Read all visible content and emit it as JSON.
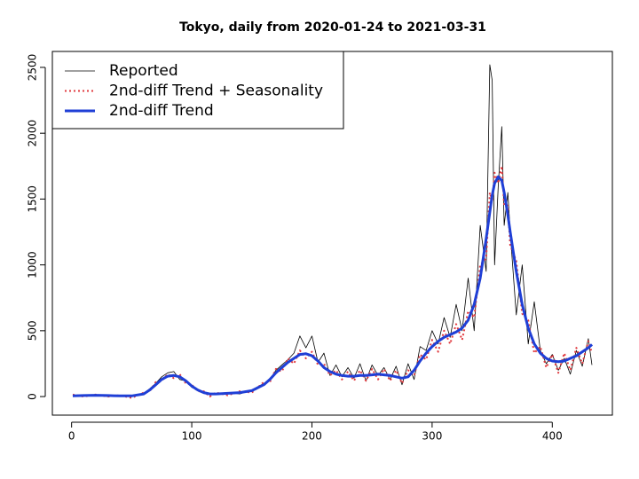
{
  "chart_data": {
    "type": "line",
    "title": "Tokyo, daily from 2020-01-24 to 2021-03-31",
    "x": [
      1,
      10,
      20,
      30,
      40,
      50,
      60,
      65,
      70,
      75,
      80,
      85,
      90,
      95,
      100,
      105,
      110,
      115,
      120,
      130,
      140,
      150,
      160,
      165,
      170,
      175,
      180,
      185,
      190,
      195,
      200,
      205,
      210,
      215,
      220,
      225,
      230,
      235,
      240,
      245,
      250,
      255,
      260,
      265,
      270,
      275,
      280,
      285,
      290,
      295,
      300,
      305,
      310,
      315,
      320,
      325,
      330,
      335,
      340,
      345,
      348,
      350,
      352,
      355,
      358,
      360,
      363,
      365,
      370,
      375,
      380,
      385,
      390,
      395,
      400,
      405,
      410,
      415,
      420,
      425,
      430,
      433
    ],
    "series": [
      {
        "name": "Reported",
        "color": "#000000",
        "style": "solid",
        "width": 0.8,
        "values": [
          5,
          5,
          15,
          0,
          5,
          10,
          25,
          60,
          100,
          150,
          180,
          190,
          130,
          120,
          70,
          50,
          35,
          15,
          25,
          30,
          20,
          50,
          100,
          130,
          200,
          240,
          280,
          330,
          460,
          370,
          460,
          260,
          330,
          160,
          240,
          150,
          220,
          140,
          250,
          120,
          240,
          160,
          220,
          130,
          230,
          90,
          250,
          130,
          380,
          350,
          500,
          400,
          600,
          450,
          700,
          500,
          900,
          500,
          1300,
          950,
          2520,
          2400,
          1000,
          1600,
          2050,
          1300,
          1550,
          1250,
          620,
          1000,
          400,
          720,
          350,
          250,
          320,
          200,
          290,
          170,
          350,
          230,
          440,
          240
        ]
      },
      {
        "name": "2nd-diff Trend + Seasonality",
        "color": "#e0393e",
        "style": "dotted",
        "width": 2,
        "values": [
          15,
          0,
          15,
          0,
          10,
          -10,
          30,
          40,
          110,
          120,
          170,
          140,
          170,
          100,
          90,
          40,
          40,
          0,
          30,
          10,
          40,
          30,
          110,
          110,
          210,
          190,
          290,
          250,
          350,
          290,
          340,
          240,
          250,
          160,
          200,
          130,
          190,
          120,
          200,
          120,
          210,
          130,
          210,
          120,
          200,
          100,
          200,
          160,
          320,
          280,
          430,
          340,
          500,
          400,
          550,
          430,
          650,
          600,
          1000,
          1050,
          1550,
          1480,
          1700,
          1620,
          1750,
          1450,
          1450,
          1150,
          1030,
          630,
          580,
          330,
          380,
          220,
          320,
          180,
          330,
          200,
          370,
          250,
          420,
          330
        ]
      },
      {
        "name": "2nd-diff Trend",
        "color": "#1f3fd6",
        "style": "solid",
        "width": 3,
        "values": [
          5,
          8,
          10,
          8,
          5,
          5,
          20,
          50,
          90,
          130,
          155,
          160,
          150,
          120,
          80,
          50,
          30,
          20,
          20,
          25,
          30,
          45,
          90,
          130,
          180,
          220,
          260,
          290,
          320,
          325,
          310,
          270,
          220,
          190,
          170,
          160,
          155,
          155,
          160,
          160,
          165,
          170,
          165,
          160,
          150,
          140,
          150,
          200,
          270,
          330,
          380,
          420,
          450,
          470,
          490,
          520,
          580,
          700,
          900,
          1200,
          1400,
          1530,
          1620,
          1670,
          1640,
          1550,
          1380,
          1250,
          950,
          700,
          520,
          400,
          330,
          290,
          270,
          265,
          270,
          290,
          310,
          340,
          370,
          395
        ]
      }
    ],
    "xlim": [
      -16,
      450
    ],
    "ylim": [
      -141,
      2621
    ],
    "xticks": [
      0,
      100,
      200,
      300,
      400
    ],
    "yticks": [
      0,
      500,
      1000,
      1500,
      2000,
      2500
    ],
    "legend": "top-left"
  }
}
